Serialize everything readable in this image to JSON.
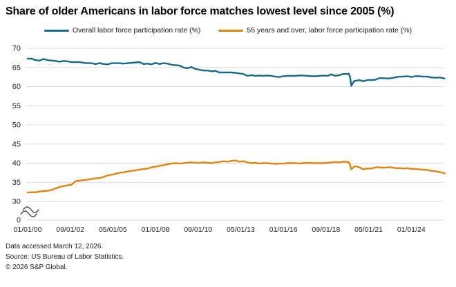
{
  "title": "Share of older Americans in labor force matches lowest level since 2005 (%)",
  "legend": [
    {
      "label": "Overall labor force participation rate (%)",
      "color": "#16698A"
    },
    {
      "label": "55 years and over, labor force participation rate (%)",
      "color": "#E3820E"
    }
  ],
  "footer": {
    "line1": "Data accessed March 12, 2026.",
    "line2": "Source: US Bureau of Labor Statistics.",
    "line3": "© 2026 S&P Global."
  },
  "colors": {
    "grid": "#DBDBDB",
    "axis_text": "#262626",
    "axis_break": "#4D4D4D"
  },
  "chart_data": {
    "type": "line",
    "title": "Share of older Americans in labor force matches lowest level since 2005 (%)",
    "xlabel": "",
    "ylabel": "",
    "x_unit": "months since 2000-01 (dates shown as MM/DD/YY)",
    "grid": true,
    "legend_position": "top-center",
    "ylim_display": [
      30,
      70
    ],
    "axis_break_to_zero": true,
    "y_ticks": [
      70,
      65,
      60,
      55,
      50,
      45,
      40,
      35,
      30
    ],
    "y_baseline_label": "0",
    "x_range_months": [
      0,
      313
    ],
    "x_ticks": [
      {
        "month": 0,
        "label": "01/01/00"
      },
      {
        "month": 32,
        "label": "09/01/02"
      },
      {
        "month": 64,
        "label": "05/01/05"
      },
      {
        "month": 96,
        "label": "01/01/08"
      },
      {
        "month": 128,
        "label": "09/01/10"
      },
      {
        "month": 160,
        "label": "05/01/13"
      },
      {
        "month": 192,
        "label": "01/01/16"
      },
      {
        "month": 224,
        "label": "09/01/18"
      },
      {
        "month": 256,
        "label": "05/01/21"
      },
      {
        "month": 288,
        "label": "01/01/24"
      }
    ],
    "series": [
      {
        "name": "Overall labor force participation rate (%)",
        "color": "#16698A",
        "points": [
          [
            0,
            67.3
          ],
          [
            3,
            67.3
          ],
          [
            6,
            66.9
          ],
          [
            9,
            66.8
          ],
          [
            12,
            67.2
          ],
          [
            15,
            66.9
          ],
          [
            18,
            66.8
          ],
          [
            21,
            66.7
          ],
          [
            24,
            66.5
          ],
          [
            27,
            66.7
          ],
          [
            30,
            66.6
          ],
          [
            33,
            66.4
          ],
          [
            36,
            66.4
          ],
          [
            39,
            66.4
          ],
          [
            42,
            66.2
          ],
          [
            45,
            66.1
          ],
          [
            48,
            66.1
          ],
          [
            51,
            65.9
          ],
          [
            54,
            66.1
          ],
          [
            57,
            65.9
          ],
          [
            60,
            65.8
          ],
          [
            63,
            66.1
          ],
          [
            66,
            66.1
          ],
          [
            69,
            66.1
          ],
          [
            72,
            66.0
          ],
          [
            75,
            66.1
          ],
          [
            78,
            66.2
          ],
          [
            81,
            66.3
          ],
          [
            84,
            66.4
          ],
          [
            87,
            65.9
          ],
          [
            90,
            66.0
          ],
          [
            93,
            65.8
          ],
          [
            96,
            66.2
          ],
          [
            99,
            65.9
          ],
          [
            102,
            66.1
          ],
          [
            105,
            66.0
          ],
          [
            108,
            65.7
          ],
          [
            111,
            65.6
          ],
          [
            114,
            65.5
          ],
          [
            117,
            65.0
          ],
          [
            120,
            64.8
          ],
          [
            123,
            65.1
          ],
          [
            126,
            64.6
          ],
          [
            129,
            64.4
          ],
          [
            132,
            64.2
          ],
          [
            135,
            64.2
          ],
          [
            138,
            64.0
          ],
          [
            141,
            64.1
          ],
          [
            144,
            63.7
          ],
          [
            147,
            63.7
          ],
          [
            150,
            63.7
          ],
          [
            153,
            63.7
          ],
          [
            156,
            63.6
          ],
          [
            159,
            63.4
          ],
          [
            162,
            63.3
          ],
          [
            165,
            62.8
          ],
          [
            168,
            63.0
          ],
          [
            171,
            62.8
          ],
          [
            174,
            62.9
          ],
          [
            177,
            62.8
          ],
          [
            180,
            62.9
          ],
          [
            183,
            62.8
          ],
          [
            186,
            62.6
          ],
          [
            189,
            62.5
          ],
          [
            192,
            62.7
          ],
          [
            195,
            62.8
          ],
          [
            198,
            62.8
          ],
          [
            201,
            62.8
          ],
          [
            204,
            62.9
          ],
          [
            207,
            62.9
          ],
          [
            210,
            62.8
          ],
          [
            213,
            62.7
          ],
          [
            216,
            62.7
          ],
          [
            219,
            62.8
          ],
          [
            222,
            62.9
          ],
          [
            225,
            62.8
          ],
          [
            228,
            63.2
          ],
          [
            231,
            62.8
          ],
          [
            234,
            63.0
          ],
          [
            237,
            63.3
          ],
          [
            240,
            63.3
          ],
          [
            241,
            63.4
          ],
          [
            242,
            62.6
          ],
          [
            243,
            60.2
          ],
          [
            244,
            60.8
          ],
          [
            245,
            61.4
          ],
          [
            246,
            61.5
          ],
          [
            249,
            61.7
          ],
          [
            252,
            61.4
          ],
          [
            255,
            61.7
          ],
          [
            258,
            61.7
          ],
          [
            261,
            61.8
          ],
          [
            264,
            62.2
          ],
          [
            267,
            62.2
          ],
          [
            270,
            62.1
          ],
          [
            273,
            62.2
          ],
          [
            276,
            62.4
          ],
          [
            279,
            62.6
          ],
          [
            282,
            62.6
          ],
          [
            285,
            62.7
          ],
          [
            288,
            62.5
          ],
          [
            291,
            62.7
          ],
          [
            294,
            62.7
          ],
          [
            297,
            62.6
          ],
          [
            300,
            62.6
          ],
          [
            303,
            62.4
          ],
          [
            306,
            62.3
          ],
          [
            309,
            62.4
          ],
          [
            312,
            62.2
          ],
          [
            313,
            62.1
          ]
        ]
      },
      {
        "name": "55 years and over, labor force participation rate (%)",
        "color": "#E3820E",
        "points": [
          [
            0,
            32.3
          ],
          [
            3,
            32.4
          ],
          [
            6,
            32.4
          ],
          [
            9,
            32.6
          ],
          [
            12,
            32.7
          ],
          [
            15,
            32.8
          ],
          [
            18,
            33.0
          ],
          [
            21,
            33.4
          ],
          [
            24,
            33.8
          ],
          [
            27,
            34.0
          ],
          [
            30,
            34.2
          ],
          [
            33,
            34.4
          ],
          [
            36,
            35.3
          ],
          [
            39,
            35.4
          ],
          [
            42,
            35.6
          ],
          [
            45,
            35.7
          ],
          [
            48,
            35.9
          ],
          [
            51,
            36.0
          ],
          [
            54,
            36.1
          ],
          [
            57,
            36.4
          ],
          [
            60,
            36.8
          ],
          [
            63,
            37.0
          ],
          [
            66,
            37.2
          ],
          [
            69,
            37.5
          ],
          [
            72,
            37.6
          ],
          [
            75,
            37.8
          ],
          [
            78,
            38.0
          ],
          [
            81,
            38.1
          ],
          [
            84,
            38.3
          ],
          [
            87,
            38.5
          ],
          [
            90,
            38.6
          ],
          [
            93,
            38.9
          ],
          [
            96,
            39.1
          ],
          [
            99,
            39.3
          ],
          [
            102,
            39.5
          ],
          [
            105,
            39.7
          ],
          [
            108,
            39.9
          ],
          [
            111,
            40.0
          ],
          [
            114,
            39.9
          ],
          [
            117,
            40.0
          ],
          [
            120,
            40.1
          ],
          [
            123,
            40.2
          ],
          [
            126,
            40.1
          ],
          [
            129,
            40.1
          ],
          [
            132,
            40.2
          ],
          [
            135,
            40.1
          ],
          [
            138,
            40.0
          ],
          [
            141,
            40.2
          ],
          [
            144,
            40.3
          ],
          [
            147,
            40.5
          ],
          [
            150,
            40.4
          ],
          [
            153,
            40.6
          ],
          [
            156,
            40.7
          ],
          [
            159,
            40.4
          ],
          [
            162,
            40.5
          ],
          [
            165,
            40.2
          ],
          [
            168,
            40.0
          ],
          [
            171,
            40.1
          ],
          [
            174,
            39.9
          ],
          [
            177,
            40.0
          ],
          [
            180,
            40.0
          ],
          [
            183,
            39.9
          ],
          [
            186,
            39.8
          ],
          [
            189,
            39.9
          ],
          [
            192,
            39.9
          ],
          [
            195,
            40.0
          ],
          [
            198,
            40.0
          ],
          [
            201,
            40.0
          ],
          [
            204,
            39.9
          ],
          [
            207,
            40.0
          ],
          [
            210,
            40.1
          ],
          [
            213,
            40.0
          ],
          [
            216,
            40.0
          ],
          [
            219,
            40.0
          ],
          [
            222,
            40.0
          ],
          [
            225,
            40.1
          ],
          [
            228,
            40.2
          ],
          [
            231,
            40.3
          ],
          [
            234,
            40.2
          ],
          [
            237,
            40.4
          ],
          [
            240,
            40.3
          ],
          [
            241,
            40.3
          ],
          [
            242,
            39.6
          ],
          [
            243,
            38.4
          ],
          [
            244,
            38.7
          ],
          [
            245,
            39.0
          ],
          [
            246,
            39.2
          ],
          [
            249,
            38.9
          ],
          [
            252,
            38.4
          ],
          [
            255,
            38.6
          ],
          [
            258,
            38.6
          ],
          [
            261,
            38.9
          ],
          [
            264,
            38.9
          ],
          [
            267,
            38.8
          ],
          [
            270,
            38.9
          ],
          [
            273,
            38.9
          ],
          [
            276,
            38.7
          ],
          [
            279,
            38.7
          ],
          [
            282,
            38.6
          ],
          [
            285,
            38.7
          ],
          [
            288,
            38.5
          ],
          [
            291,
            38.5
          ],
          [
            294,
            38.4
          ],
          [
            297,
            38.3
          ],
          [
            300,
            38.2
          ],
          [
            303,
            38.0
          ],
          [
            306,
            37.9
          ],
          [
            309,
            37.7
          ],
          [
            312,
            37.5
          ],
          [
            313,
            37.3
          ]
        ]
      }
    ]
  }
}
